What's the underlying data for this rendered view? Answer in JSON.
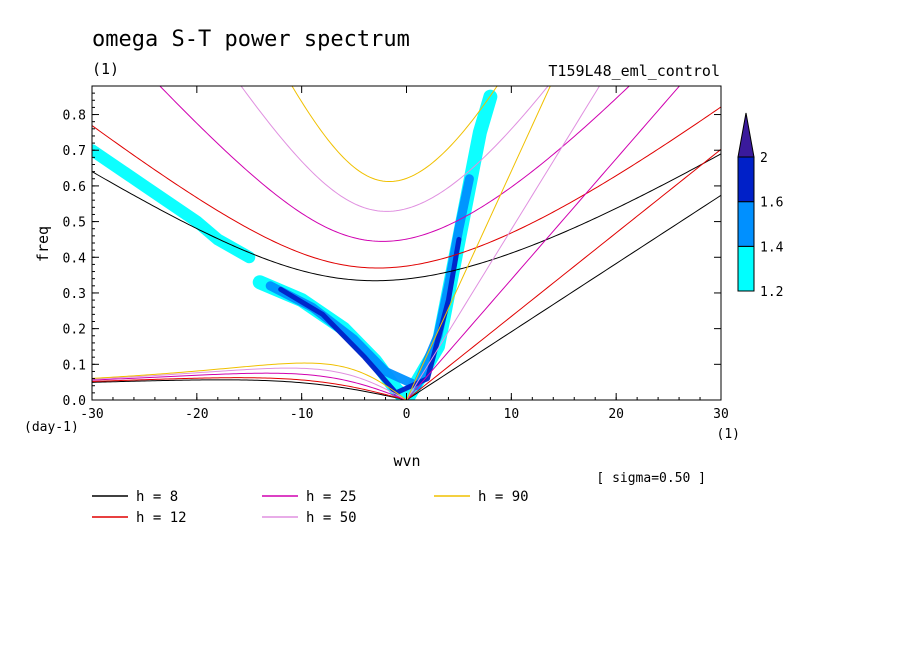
{
  "title": "omega S-T power spectrum",
  "title_unit": "(1)",
  "run_name": "T159L48_eml_control",
  "sigma_note": "[ sigma=0.50 ]",
  "chart_data": {
    "type": "heatmap",
    "xlabel": "wvn",
    "ylabel": "freq",
    "x_unit": "(1)",
    "y_unit": "(day-1)",
    "xlim": [
      -30,
      30
    ],
    "ylim": [
      0,
      0.88
    ],
    "xticks": [
      "-30",
      "-20",
      "-10",
      "0",
      "10",
      "20",
      "30"
    ],
    "yticks": [
      "0.0",
      "0.1",
      "0.2",
      "0.3",
      "0.4",
      "0.5",
      "0.6",
      "0.7",
      "0.8"
    ],
    "colorbar": {
      "levels": [
        "1.2",
        "1.4",
        "1.6",
        "2"
      ],
      "colors": [
        "#00ffff",
        "#0090ff",
        "#0020c8",
        "#3a1a9c"
      ]
    },
    "contour_bands": [
      {
        "level": 1.2,
        "color": "#00ffff",
        "points": [
          [
            -14,
            0.33
          ],
          [
            -10,
            0.28
          ],
          [
            -6,
            0.2
          ],
          [
            -3,
            0.11
          ],
          [
            -1,
            0.03
          ],
          [
            0,
            0.0
          ],
          [
            1,
            0.05
          ],
          [
            3,
            0.15
          ],
          [
            4,
            0.3
          ],
          [
            5,
            0.45
          ],
          [
            6,
            0.6
          ],
          [
            7,
            0.75
          ],
          [
            8,
            0.85
          ]
        ]
      },
      {
        "level": 1.4,
        "color": "#0090ff",
        "points": [
          [
            -13,
            0.32
          ],
          [
            -9,
            0.26
          ],
          [
            -5,
            0.17
          ],
          [
            -2,
            0.08
          ],
          [
            1,
            0.04
          ],
          [
            3,
            0.18
          ],
          [
            4,
            0.32
          ],
          [
            5,
            0.48
          ],
          [
            6,
            0.62
          ]
        ]
      },
      {
        "level": 1.6,
        "color": "#0020c8",
        "points": [
          [
            -12,
            0.31
          ],
          [
            -8,
            0.24
          ],
          [
            -4,
            0.12
          ],
          [
            -1,
            0.02
          ],
          [
            2,
            0.06
          ],
          [
            4,
            0.28
          ],
          [
            5,
            0.45
          ]
        ]
      },
      {
        "level": 1.2,
        "color": "#00ffff",
        "points": [
          [
            -30,
            0.7
          ],
          [
            -25,
            0.6
          ],
          [
            -20,
            0.5
          ],
          [
            -18,
            0.45
          ],
          [
            -15,
            0.4
          ]
        ]
      }
    ],
    "dispersion_curves": [
      {
        "name": "h =  8",
        "color": "#000000"
      },
      {
        "name": "h = 12",
        "color": "#e00000"
      },
      {
        "name": "h = 25",
        "color": "#d000b0"
      },
      {
        "name": "h = 50",
        "color": "#e090e0"
      },
      {
        "name": "h = 90",
        "color": "#f0c000"
      }
    ],
    "curve_samples": {
      "h8_er1_min": 0.335,
      "h12_er1_min": 0.37,
      "h25_er1_min": 0.44,
      "h50_er1_min": 0.53,
      "h90_er1_min": 0.61
    }
  },
  "legend_columns": [
    [
      {
        "label": "h =  8",
        "color": "#000000"
      },
      {
        "label": "h = 12",
        "color": "#e00000"
      }
    ],
    [
      {
        "label": "h = 25",
        "color": "#d000b0"
      },
      {
        "label": "h = 50",
        "color": "#e090e0"
      }
    ],
    [
      {
        "label": "h = 90",
        "color": "#f0c000"
      }
    ]
  ]
}
